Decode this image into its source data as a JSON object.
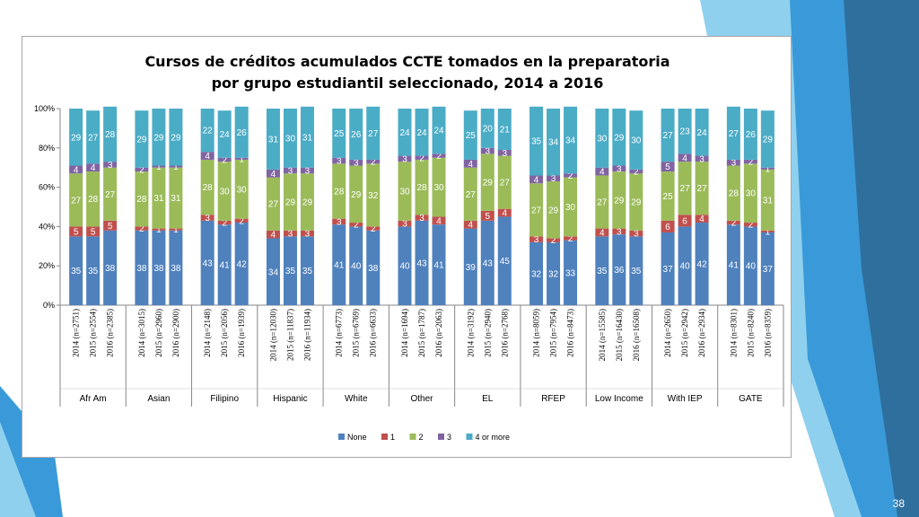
{
  "slide": {
    "page_number": "38",
    "colors": {
      "deco_blue": "#3a9ad9",
      "deco_light": "#8fd0ee",
      "deco_dark": "#2e6f9e"
    }
  },
  "chart_data": {
    "type": "bar",
    "stacked": true,
    "title": "Cursos de créditos acumulados CCTE tomados en la preparatoria",
    "subtitle": "por grupo estudiantil seleccionado, 2014 a 2016",
    "ylim": [
      0,
      100
    ],
    "yticks": [
      "0%",
      "20%",
      "40%",
      "60%",
      "80%",
      "100%"
    ],
    "grid": false,
    "legend_position": "bottom",
    "groups": [
      {
        "name": "Afr Am",
        "bars": [
          {
            "label": "2014 (n=2751)",
            "values": [
              35,
              5,
              27,
              4,
              29
            ]
          },
          {
            "label": "2015 (n=2554)",
            "values": [
              35,
              5,
              28,
              4,
              27
            ]
          },
          {
            "label": "2016 (n=2385)",
            "values": [
              38,
              5,
              27,
              3,
              28
            ]
          }
        ]
      },
      {
        "name": "Asian",
        "bars": [
          {
            "label": "2014 (n=3015)",
            "values": [
              38,
              2,
              28,
              2,
              29
            ]
          },
          {
            "label": "2015 (n=2960)",
            "values": [
              38,
              1,
              31,
              1,
              29
            ]
          },
          {
            "label": "2016 (n=2900)",
            "values": [
              38,
              1,
              31,
              1,
              29
            ]
          }
        ]
      },
      {
        "name": "Filipino",
        "bars": [
          {
            "label": "2014 (n=2148)",
            "values": [
              43,
              3,
              28,
              4,
              22
            ]
          },
          {
            "label": "2015 (n=2056)",
            "values": [
              41,
              2,
              30,
              2,
              24
            ]
          },
          {
            "label": "2016 (n=1939)",
            "values": [
              42,
              2,
              30,
              1,
              26
            ]
          }
        ]
      },
      {
        "name": "Hispanic",
        "bars": [
          {
            "label": "2014 (n=12030)",
            "values": [
              34,
              4,
              27,
              4,
              31
            ]
          },
          {
            "label": "2015 (n=11837)",
            "values": [
              35,
              3,
              29,
              3,
              30
            ]
          },
          {
            "label": "2016 (n=11934)",
            "values": [
              35,
              3,
              29,
              3,
              31
            ]
          }
        ]
      },
      {
        "name": "White",
        "bars": [
          {
            "label": "2014 (n=6773)",
            "values": [
              41,
              3,
              28,
              3,
              25
            ]
          },
          {
            "label": "2015 (n=6769)",
            "values": [
              40,
              2,
              29,
              3,
              26
            ]
          },
          {
            "label": "2016 (n=6633)",
            "values": [
              38,
              2,
              32,
              2,
              27
            ]
          }
        ]
      },
      {
        "name": "Other",
        "bars": [
          {
            "label": "2014 (n=1694)",
            "values": [
              40,
              3,
              30,
              3,
              24
            ]
          },
          {
            "label": "2015 (n=1787)",
            "values": [
              43,
              3,
              28,
              2,
              24
            ]
          },
          {
            "label": "2016 (n=2063)",
            "values": [
              41,
              4,
              30,
              2,
              24
            ]
          }
        ]
      },
      {
        "name": "EL",
        "bars": [
          {
            "label": "2014 (n=3192)",
            "values": [
              39,
              4,
              27,
              4,
              25
            ]
          },
          {
            "label": "2015 (n=2940)",
            "values": [
              43,
              5,
              29,
              3,
              20
            ]
          },
          {
            "label": "2016 (n=2768)",
            "values": [
              45,
              4,
              27,
              3,
              21
            ]
          }
        ]
      },
      {
        "name": "RFEP",
        "bars": [
          {
            "label": "2014 (n=8059)",
            "values": [
              32,
              3,
              27,
              4,
              35
            ]
          },
          {
            "label": "2015 (n=7954)",
            "values": [
              32,
              2,
              29,
              3,
              34
            ]
          },
          {
            "label": "2016 (n=8473)",
            "values": [
              33,
              2,
              30,
              2,
              34
            ]
          }
        ]
      },
      {
        "name": "Low Income",
        "bars": [
          {
            "label": "2014 (n=15585)",
            "values": [
              35,
              4,
              27,
              4,
              30
            ]
          },
          {
            "label": "2015 (n=16430)",
            "values": [
              36,
              3,
              29,
              3,
              29
            ]
          },
          {
            "label": "2016 (n=16508)",
            "values": [
              35,
              3,
              29,
              2,
              30
            ]
          }
        ]
      },
      {
        "name": "With IEP",
        "bars": [
          {
            "label": "2014 (n=2650)",
            "values": [
              37,
              6,
              25,
              5,
              27
            ]
          },
          {
            "label": "2015 (n=2942)",
            "values": [
              40,
              6,
              27,
              4,
              23
            ]
          },
          {
            "label": "2016 (n=2934)",
            "values": [
              42,
              4,
              27,
              3,
              24
            ]
          }
        ]
      },
      {
        "name": "GATE",
        "bars": [
          {
            "label": "2014 (n=8301)",
            "values": [
              41,
              2,
              28,
              3,
              27
            ]
          },
          {
            "label": "2015 (n=8240)",
            "values": [
              40,
              2,
              30,
              2,
              26
            ]
          },
          {
            "label": "2016 (n=8359)",
            "values": [
              37,
              1,
              31,
              1,
              29
            ]
          }
        ]
      }
    ],
    "series": [
      {
        "name": "None",
        "color": "#4f81bd"
      },
      {
        "name": "1",
        "color": "#c0504d"
      },
      {
        "name": "2",
        "color": "#9bbb59"
      },
      {
        "name": "3",
        "color": "#8064a2"
      },
      {
        "name": "4 or more",
        "color": "#4bacc6"
      }
    ]
  }
}
